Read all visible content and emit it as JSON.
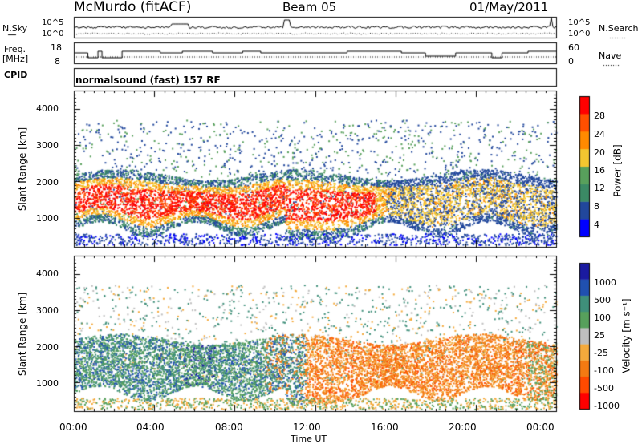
{
  "header": {
    "station": "McMurdo (fitACF)",
    "beam": "Beam 05",
    "date": "01/May/2011"
  },
  "strips": {
    "noise": {
      "left_label": "N.Sky",
      "right_label": "N.Search",
      "left_ticks": [
        "10^5",
        "10^0"
      ],
      "right_ticks": [
        "10^5",
        "10^0"
      ]
    },
    "freq": {
      "left_label_1": "Freq.",
      "left_label_2": "[MHz]",
      "right_label": "Nave",
      "left_ticks": [
        "18",
        "8"
      ],
      "right_ticks": [
        "60",
        "0"
      ]
    },
    "cpid": {
      "label": "CPID",
      "value": "normalsound (fast) 157 RF"
    }
  },
  "colors": {
    "power_scale": [
      "#0000ff",
      "#21479c",
      "#3b8a65",
      "#58a05c",
      "#f3c630",
      "#ff8a00",
      "#ff4f00",
      "#ff0000"
    ],
    "velocity_scale": [
      "#ff0000",
      "#ff4a00",
      "#f47a12",
      "#f4aa3c",
      "#bebebe",
      "#57a05c",
      "#3f8f7a",
      "#2050b0",
      "#1a1aa0"
    ]
  },
  "chart_data": [
    {
      "type": "heatmap",
      "title": "",
      "xlabel": "",
      "ylabel": "Slant Range [km]",
      "xlim": [
        0,
        24
      ],
      "ylim": [
        200,
        4500
      ],
      "x_ticks": [
        "00:00",
        "04:00",
        "08:00",
        "12:00",
        "16:00",
        "20:00",
        "00:00"
      ],
      "y_ticks": [
        1000,
        2000,
        3000,
        4000
      ],
      "colorbar": {
        "label": "Power [dB]",
        "ticks": [
          "4",
          "8",
          "12",
          "16",
          "20",
          "24",
          "28"
        ]
      }
    },
    {
      "type": "heatmap",
      "title": "",
      "xlabel": "Time UT",
      "ylabel": "Slant Range [km]",
      "xlim": [
        0,
        24
      ],
      "ylim": [
        200,
        4500
      ],
      "x_ticks": [
        "00:00",
        "04:00",
        "08:00",
        "12:00",
        "16:00",
        "20:00",
        "00:00"
      ],
      "y_ticks": [
        1000,
        2000,
        3000,
        4000
      ],
      "colorbar": {
        "label": "Velocity [m s⁻¹]",
        "ticks": [
          "1000",
          "500",
          "100",
          "25",
          "-25",
          "-100",
          "-500",
          "-1000"
        ]
      }
    }
  ]
}
